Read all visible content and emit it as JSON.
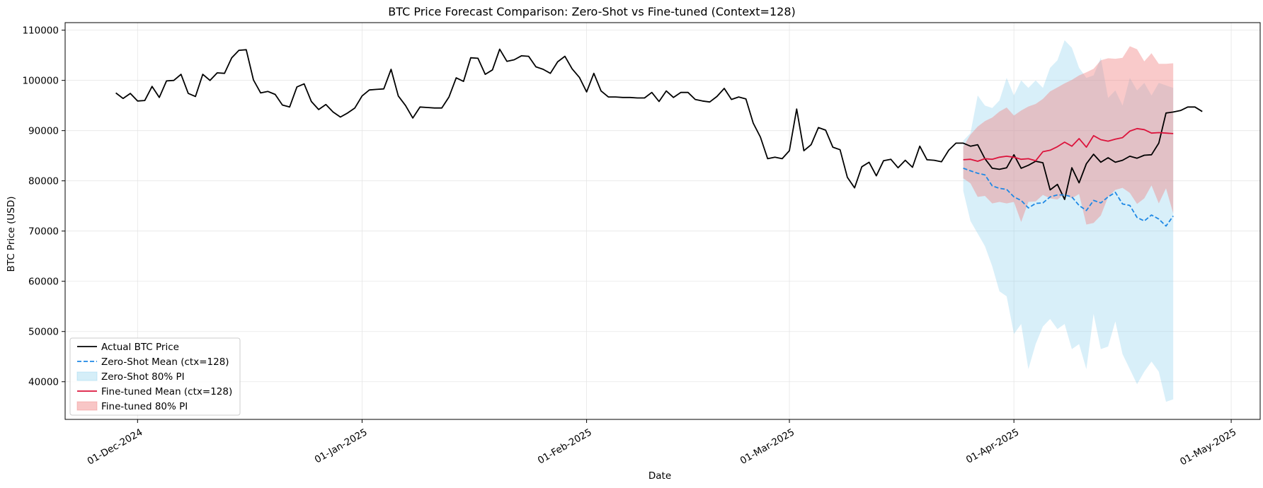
{
  "chart_data": {
    "type": "line",
    "title": "BTC Price Forecast Comparison: Zero-Shot vs Fine-tuned (Context=128)",
    "xlabel": "Date",
    "ylabel": "BTC Price (USD)",
    "xlim": [
      "2024-11-21",
      "2025-05-05"
    ],
    "ylim": [
      32500,
      111500
    ],
    "x_ticks": [
      {
        "date": "2024-12-01",
        "label": "01-Dec-2024"
      },
      {
        "date": "2025-01-01",
        "label": "01-Jan-2025"
      },
      {
        "date": "2025-02-01",
        "label": "01-Feb-2025"
      },
      {
        "date": "2025-03-01",
        "label": "01-Mar-2025"
      },
      {
        "date": "2025-04-01",
        "label": "01-Apr-2025"
      },
      {
        "date": "2025-05-01",
        "label": "01-May-2025"
      }
    ],
    "y_ticks": [
      40000,
      50000,
      60000,
      70000,
      80000,
      90000,
      100000,
      110000
    ],
    "grid": true,
    "legend_position": "bottom-left",
    "colors": {
      "actual": "#000000",
      "zero_shot_mean": "#1e88e5",
      "zero_shot_pi": "#87ceeb",
      "fine_tuned_mean": "#dc143c",
      "fine_tuned_pi": "#f08080"
    },
    "series": [
      {
        "name": "Actual BTC Price",
        "kind": "line",
        "start_date": "2024-11-28",
        "step_days": 1,
        "values": [
          97500,
          96400,
          97400,
          95900,
          96000,
          98800,
          96600,
          99900,
          100000,
          101200,
          97400,
          96800,
          101200,
          100000,
          101500,
          101400,
          104500,
          106000,
          106100,
          100100,
          97500,
          97800,
          97200,
          95100,
          94700,
          98700,
          99300,
          95800,
          94200,
          95200,
          93700,
          92700,
          93500,
          94500,
          96900,
          98100,
          98200,
          98300,
          102200,
          96900,
          95000,
          92500,
          94700,
          94600,
          94500,
          94500,
          96700,
          100500,
          99800,
          104500,
          104400,
          101200,
          102100,
          106200,
          103800,
          104100,
          104900,
          104800,
          102700,
          102200,
          101400,
          103700,
          104800,
          102300,
          100600,
          97700,
          101400,
          97900,
          96700,
          96700,
          96600,
          96600,
          96500,
          96500,
          97600,
          95800,
          97900,
          96600,
          97600,
          97600,
          96200,
          95900,
          95700,
          96800,
          98400,
          96200,
          96700,
          96300,
          91500,
          88700,
          84400,
          84700,
          84400,
          86000,
          94300,
          86000,
          87200,
          90600,
          90100,
          86700,
          86200,
          80700,
          78600,
          82800,
          83700,
          81000,
          84000,
          84300,
          82600,
          84100,
          82700,
          86900,
          84200,
          84100,
          83800,
          86100,
          87500,
          87500,
          86900,
          87200,
          84400,
          82500,
          82300,
          82600,
          85200,
          82500,
          83100,
          83900,
          83600,
          78200,
          79300,
          76300,
          82600,
          79600,
          83400,
          85300,
          83700,
          84600,
          83700,
          84100,
          84900,
          84500,
          85100,
          85200,
          87500,
          93500,
          93700,
          94000,
          94700,
          94700,
          93800
        ]
      },
      {
        "name": "Zero-Shot Mean (ctx=128)",
        "kind": "dashed-line",
        "start_date": "2025-03-25",
        "step_days": 1,
        "values": [
          82500,
          82000,
          81500,
          81200,
          79000,
          78500,
          78300,
          76800,
          76100,
          74600,
          75500,
          75600,
          76800,
          77200,
          77200,
          76800,
          75100,
          74100,
          76100,
          75600,
          76800,
          77700,
          75400,
          75100,
          72700,
          72000,
          73200,
          72400,
          71000,
          73000
        ]
      },
      {
        "name": "Zero-Shot 80% PI",
        "kind": "band",
        "start_date": "2025-03-25",
        "step_days": 1,
        "lower": [
          78000,
          72000,
          69500,
          67000,
          63000,
          58000,
          57000,
          49500,
          51500,
          42500,
          47500,
          51000,
          52500,
          50500,
          51500,
          46500,
          47500,
          42500,
          53500,
          46500,
          47000,
          52000,
          45500,
          42500,
          39500,
          42000,
          44000,
          42000,
          36000,
          36500
        ],
        "upper": [
          88000,
          89500,
          97000,
          95000,
          94500,
          96000,
          100500,
          97000,
          100000,
          98500,
          100000,
          98500,
          102500,
          104000,
          108000,
          106500,
          102500,
          100500,
          101000,
          104500,
          96500,
          98000,
          95000,
          100500,
          98000,
          99500,
          97000,
          99500,
          99000,
          98500
        ]
      },
      {
        "name": "Fine-tuned Mean (ctx=128)",
        "kind": "line",
        "start_date": "2025-03-25",
        "step_days": 1,
        "values": [
          84200,
          84300,
          83900,
          84400,
          84300,
          84700,
          84900,
          84700,
          84300,
          84400,
          84000,
          85800,
          86100,
          86800,
          87700,
          86900,
          88400,
          86700,
          89000,
          88200,
          87900,
          88300,
          88600,
          89900,
          90400,
          90200,
          89500,
          89600,
          89500,
          89400
        ]
      },
      {
        "name": "Fine-tuned 80% PI",
        "kind": "band",
        "start_date": "2025-03-25",
        "step_days": 1,
        "lower": [
          80500,
          79500,
          76800,
          77000,
          75500,
          75800,
          75500,
          75800,
          71800,
          75800,
          75900,
          77200,
          76500,
          76300,
          77400,
          76500,
          77400,
          71300,
          71600,
          73100,
          76800,
          78200,
          78600,
          77600,
          75400,
          76500,
          79100,
          75500,
          78500,
          73500
        ],
        "upper": [
          86800,
          89200,
          90800,
          91900,
          92600,
          93800,
          94600,
          93000,
          94000,
          94800,
          95300,
          96300,
          97800,
          98600,
          99400,
          100100,
          101000,
          101600,
          102300,
          104000,
          104400,
          104300,
          104500,
          106800,
          106200,
          103800,
          105400,
          103300,
          103300,
          103400
        ]
      }
    ]
  }
}
